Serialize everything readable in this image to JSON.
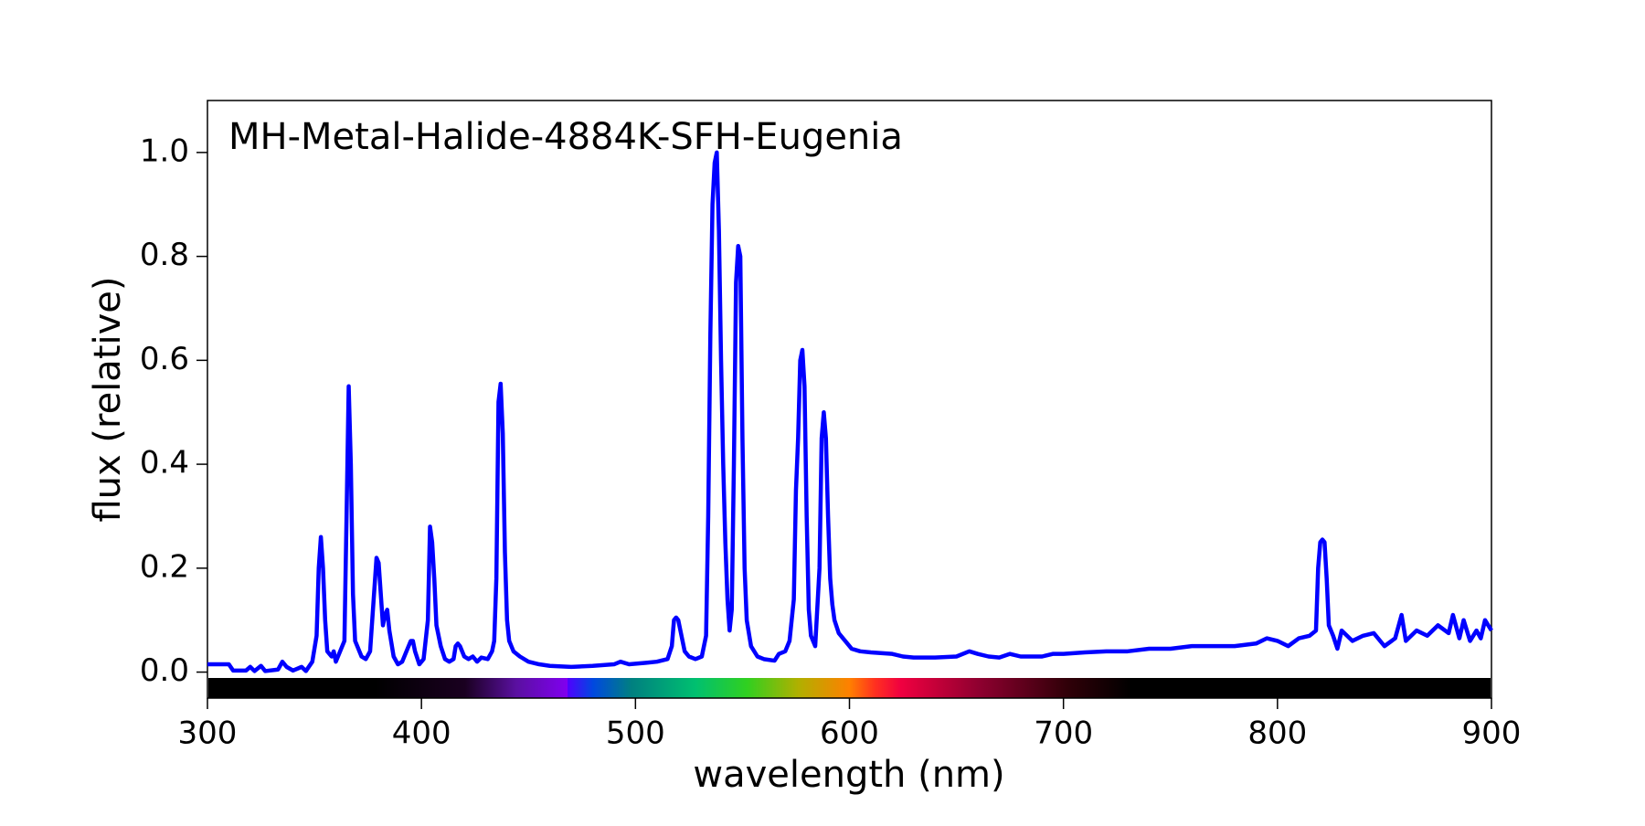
{
  "chart_data": {
    "type": "line",
    "title": "MH-Metal-Halide-4884K-SFH-Eugenia",
    "xlabel": "wavelength (nm)",
    "ylabel": "flux (relative)",
    "xlim": [
      300,
      900
    ],
    "ylim": [
      -0.05,
      1.1
    ],
    "xticks": [
      300,
      400,
      500,
      600,
      700,
      800,
      900
    ],
    "yticks": [
      {
        "value": 0,
        "label": "0.0"
      },
      0.2,
      0.4,
      0.6,
      0.8,
      {
        "value": 1,
        "label": "1.0"
      }
    ],
    "x": [
      300,
      310,
      312,
      318,
      320,
      322,
      325,
      327,
      333,
      335,
      337,
      340,
      344,
      346,
      349,
      351,
      352,
      353,
      354,
      355,
      356,
      358,
      359,
      360,
      362,
      364,
      365,
      366,
      367,
      368,
      369,
      372,
      374,
      376,
      378,
      379,
      380,
      381,
      382,
      383,
      384,
      385,
      387,
      389,
      391,
      393,
      395,
      396,
      397,
      399,
      401,
      403,
      404,
      405,
      406,
      407,
      409,
      411,
      413,
      415,
      416,
      417,
      418,
      420,
      422,
      424,
      426,
      428,
      431,
      433,
      434,
      435,
      436,
      437,
      438,
      439,
      440,
      441,
      443,
      446,
      450,
      455,
      460,
      470,
      480,
      490,
      493,
      497,
      505,
      510,
      515,
      517,
      518,
      519,
      520,
      521,
      523,
      525,
      528,
      531,
      533,
      534,
      535,
      536,
      537,
      538,
      539,
      540,
      541,
      542,
      543,
      544,
      545,
      546,
      547,
      548,
      549,
      550,
      551,
      552,
      554,
      557,
      560,
      565,
      567,
      570,
      572,
      574,
      575,
      576,
      577,
      578,
      579,
      580,
      581,
      582,
      584,
      586,
      587,
      588,
      589,
      590,
      591,
      592,
      593,
      595,
      598,
      601,
      605,
      610,
      620,
      625,
      630,
      640,
      650,
      656,
      660,
      665,
      670,
      675,
      680,
      690,
      695,
      700,
      710,
      720,
      730,
      740,
      750,
      760,
      770,
      780,
      790,
      795,
      800,
      805,
      810,
      815,
      818,
      819,
      820,
      821,
      822,
      823,
      824,
      826,
      828,
      830,
      835,
      840,
      845,
      850,
      855,
      858,
      860,
      865,
      870,
      875,
      880,
      882,
      885,
      887,
      890,
      893,
      895,
      897,
      900
    ],
    "series": [
      {
        "color": "#0000ff",
        "values": [
          0.015,
          0.015,
          0.003,
          0.003,
          0.01,
          0.002,
          0.012,
          0.002,
          0.005,
          0.02,
          0.01,
          0.003,
          0.01,
          0.002,
          0.02,
          0.07,
          0.2,
          0.26,
          0.2,
          0.1,
          0.04,
          0.03,
          0.04,
          0.02,
          0.04,
          0.06,
          0.3,
          0.55,
          0.4,
          0.15,
          0.06,
          0.03,
          0.025,
          0.04,
          0.16,
          0.22,
          0.21,
          0.15,
          0.09,
          0.11,
          0.12,
          0.08,
          0.03,
          0.015,
          0.02,
          0.04,
          0.06,
          0.06,
          0.04,
          0.015,
          0.025,
          0.1,
          0.28,
          0.25,
          0.18,
          0.09,
          0.05,
          0.025,
          0.02,
          0.025,
          0.05,
          0.055,
          0.05,
          0.03,
          0.025,
          0.03,
          0.02,
          0.028,
          0.025,
          0.04,
          0.06,
          0.18,
          0.52,
          0.555,
          0.46,
          0.23,
          0.1,
          0.06,
          0.04,
          0.03,
          0.02,
          0.015,
          0.012,
          0.01,
          0.012,
          0.015,
          0.02,
          0.015,
          0.018,
          0.02,
          0.025,
          0.05,
          0.1,
          0.105,
          0.1,
          0.08,
          0.04,
          0.03,
          0.025,
          0.03,
          0.07,
          0.3,
          0.65,
          0.9,
          0.98,
          1.0,
          0.85,
          0.6,
          0.4,
          0.25,
          0.14,
          0.08,
          0.12,
          0.4,
          0.75,
          0.82,
          0.8,
          0.45,
          0.2,
          0.1,
          0.05,
          0.03,
          0.025,
          0.022,
          0.035,
          0.04,
          0.06,
          0.14,
          0.35,
          0.45,
          0.6,
          0.62,
          0.55,
          0.3,
          0.12,
          0.07,
          0.05,
          0.2,
          0.45,
          0.5,
          0.45,
          0.3,
          0.18,
          0.13,
          0.1,
          0.075,
          0.06,
          0.045,
          0.04,
          0.038,
          0.035,
          0.03,
          0.028,
          0.028,
          0.03,
          0.04,
          0.035,
          0.03,
          0.028,
          0.035,
          0.03,
          0.03,
          0.035,
          0.035,
          0.038,
          0.04,
          0.04,
          0.045,
          0.045,
          0.05,
          0.05,
          0.05,
          0.055,
          0.065,
          0.06,
          0.05,
          0.065,
          0.07,
          0.08,
          0.2,
          0.25,
          0.255,
          0.25,
          0.18,
          0.09,
          0.07,
          0.045,
          0.08,
          0.06,
          0.07,
          0.075,
          0.05,
          0.065,
          0.11,
          0.06,
          0.08,
          0.07,
          0.09,
          0.075,
          0.11,
          0.065,
          0.1,
          0.06,
          0.08,
          0.065,
          0.1,
          0.08
        ]
      }
    ]
  }
}
